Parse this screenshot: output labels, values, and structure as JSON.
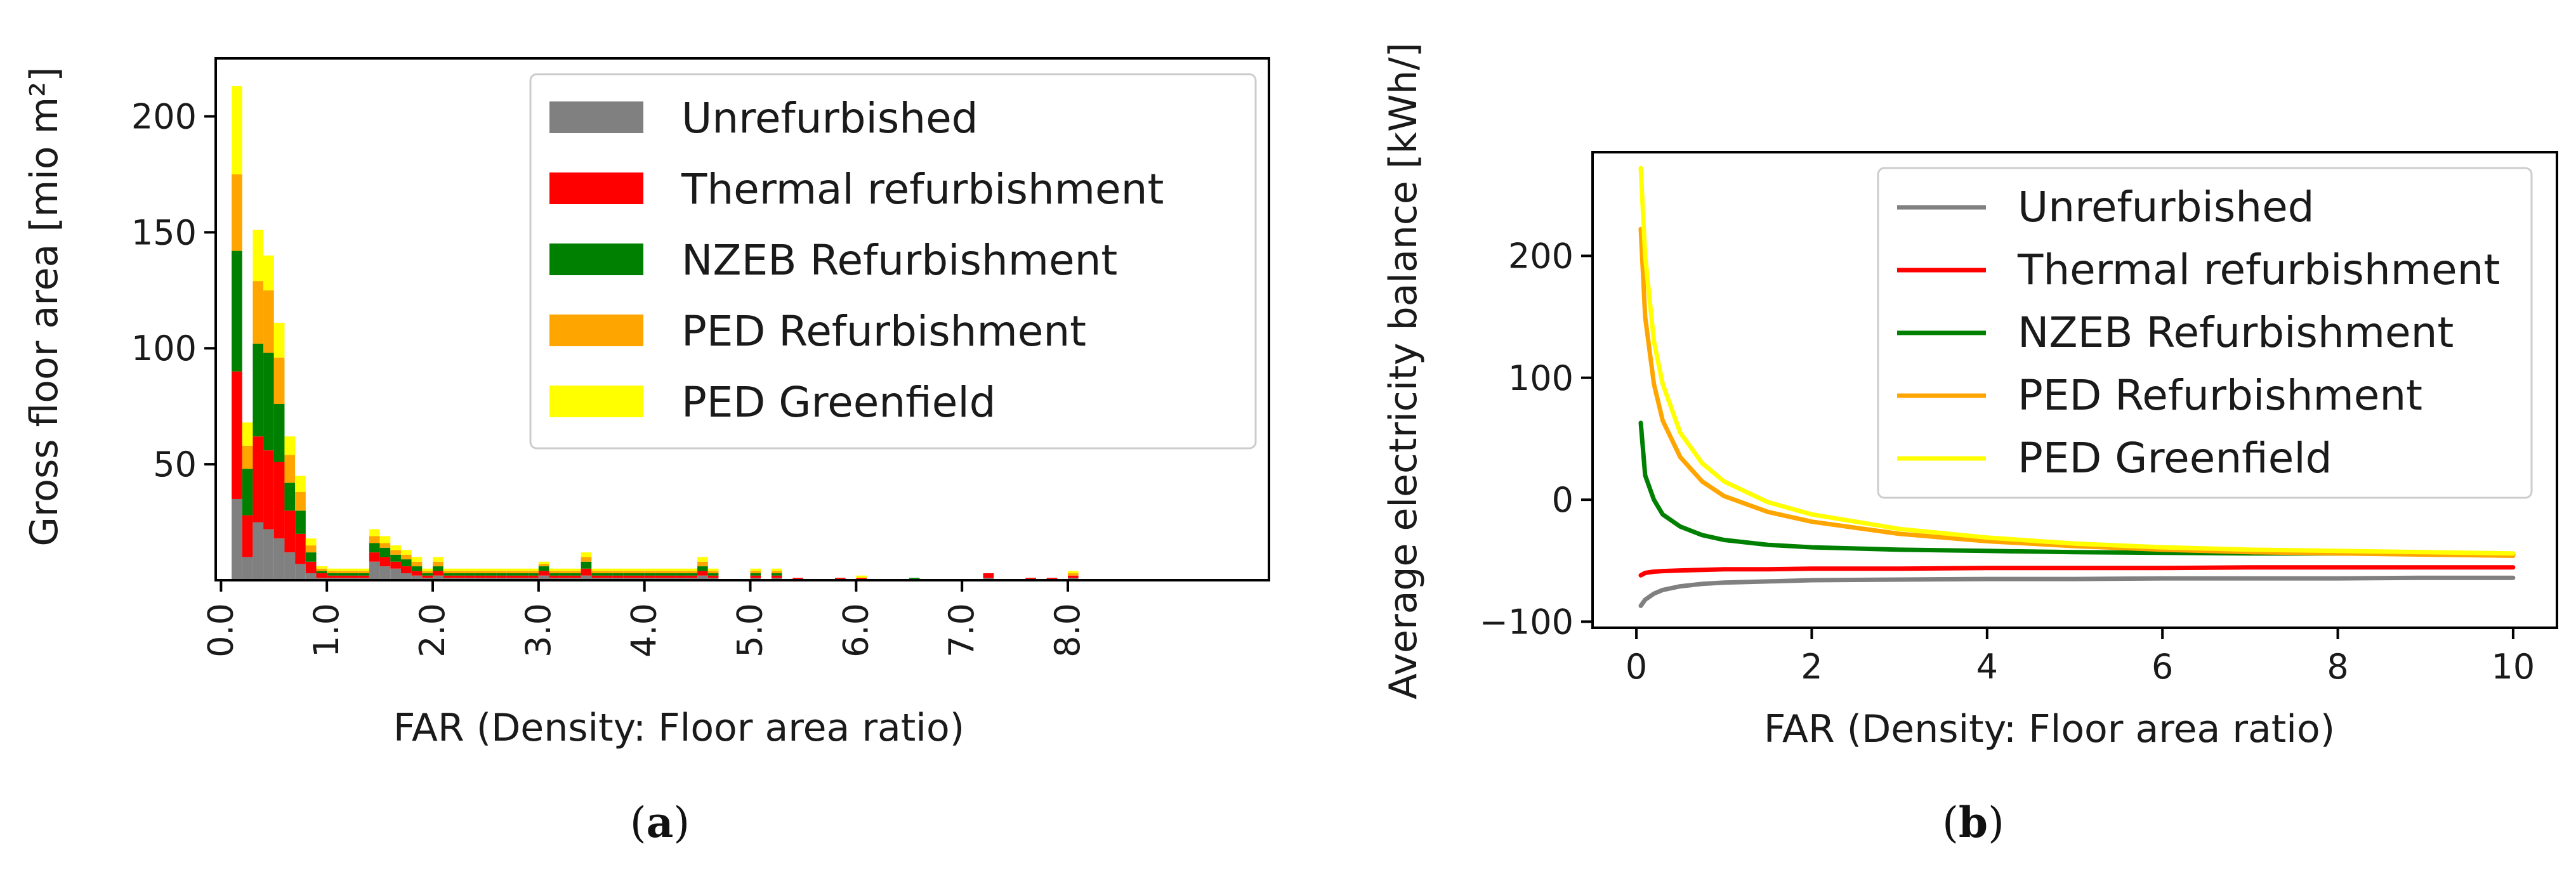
{
  "chart_data": [
    {
      "type": "bar",
      "stacked": true,
      "caption_letter": "a",
      "xlabel": "FAR (Density: Floor area ratio)",
      "ylabel": "Gross floor area [mio m²]",
      "xlim": [
        -0.05,
        9.9
      ],
      "ylim": [
        0,
        225
      ],
      "xticks": [
        "0.0",
        "1.0",
        "2.0",
        "3.0",
        "4.0",
        "5.0",
        "6.0",
        "7.0",
        "8.0"
      ],
      "yticks": [
        50,
        100,
        150,
        200
      ],
      "bin_width": 0.1,
      "bin_starts": [
        0.1,
        0.2,
        0.3,
        0.4,
        0.5,
        0.6,
        0.7,
        0.8,
        0.9,
        1.0,
        1.1,
        1.2,
        1.3,
        1.4,
        1.5,
        1.6,
        1.7,
        1.8,
        1.9,
        2.0,
        2.1,
        2.2,
        2.3,
        2.4,
        2.5,
        2.6,
        2.7,
        2.8,
        2.9,
        3.0,
        3.1,
        3.2,
        3.3,
        3.4,
        3.5,
        3.6,
        3.7,
        3.8,
        3.9,
        4.0,
        4.1,
        4.2,
        4.3,
        4.4,
        4.5,
        4.6,
        4.7,
        4.8,
        4.9,
        5.0,
        5.1,
        5.2,
        5.3,
        5.4,
        5.5,
        5.6,
        5.7,
        5.8,
        5.9,
        6.0,
        6.1,
        6.2,
        6.3,
        6.4,
        6.5,
        6.6,
        6.7,
        6.8,
        6.9,
        7.0,
        7.1,
        7.2,
        7.3,
        7.4,
        7.5,
        7.6,
        7.7,
        7.8,
        7.9,
        8.0
      ],
      "series": [
        {
          "name": "Unrefurbished",
          "color": "#808080",
          "values": [
            35,
            10,
            25,
            22,
            18,
            12,
            7,
            3,
            1,
            1,
            1,
            1,
            1,
            8,
            6,
            5,
            3,
            2,
            1,
            2,
            1,
            1,
            1,
            1,
            1,
            1,
            1,
            1,
            1,
            2,
            1,
            1,
            1,
            2,
            1,
            1,
            1,
            1,
            1,
            1,
            1,
            1,
            1,
            1,
            2,
            1,
            0,
            0,
            0,
            1,
            0,
            1,
            0,
            0,
            0,
            0,
            0,
            0,
            0,
            0,
            0,
            0,
            0,
            0,
            0,
            0,
            0,
            0,
            0,
            0,
            0,
            1,
            0,
            0,
            0,
            0,
            0,
            0,
            0,
            1
          ]
        },
        {
          "name": "Thermal refurbishment",
          "color": "#ff0000",
          "values": [
            55,
            18,
            37,
            34,
            33,
            18,
            13,
            5,
            2,
            1,
            1,
            1,
            1,
            4,
            4,
            3,
            3,
            2,
            1,
            2,
            1,
            1,
            1,
            1,
            1,
            1,
            1,
            1,
            1,
            2,
            1,
            1,
            1,
            3,
            1,
            1,
            1,
            1,
            1,
            1,
            1,
            1,
            1,
            1,
            2,
            1,
            0,
            0,
            0,
            1,
            0,
            1,
            0,
            1,
            0,
            0,
            0,
            1,
            0,
            1,
            0,
            0,
            0,
            0,
            0,
            0,
            0,
            0,
            0,
            0,
            0,
            2,
            0,
            0,
            0,
            1,
            0,
            1,
            0,
            1
          ]
        },
        {
          "name": "NZEB Refurbishment",
          "color": "#008000",
          "values": [
            52,
            20,
            40,
            42,
            25,
            12,
            10,
            4,
            1,
            1,
            1,
            1,
            1,
            4,
            4,
            3,
            3,
            2,
            1,
            2,
            1,
            1,
            1,
            1,
            1,
            1,
            1,
            1,
            1,
            2,
            1,
            1,
            1,
            3,
            1,
            1,
            1,
            1,
            1,
            1,
            1,
            1,
            1,
            1,
            2,
            1,
            0,
            0,
            0,
            1,
            0,
            1,
            0,
            0,
            0,
            0,
            0,
            0,
            0,
            0,
            0,
            0,
            0,
            0,
            1,
            0,
            0,
            0,
            0,
            0,
            0,
            0,
            0,
            0,
            0,
            0,
            0,
            0,
            0,
            0
          ]
        },
        {
          "name": "PED Refurbishment",
          "color": "#ffa500",
          "values": [
            33,
            10,
            27,
            27,
            20,
            12,
            8,
            3,
            1,
            1,
            1,
            1,
            1,
            3,
            2,
            2,
            2,
            2,
            1,
            2,
            1,
            1,
            1,
            1,
            1,
            1,
            1,
            1,
            1,
            1,
            1,
            1,
            1,
            2,
            1,
            1,
            1,
            1,
            1,
            1,
            1,
            1,
            1,
            1,
            2,
            1,
            0,
            0,
            0,
            1,
            0,
            1,
            0,
            0,
            0,
            0,
            0,
            0,
            0,
            0,
            0,
            0,
            0,
            0,
            0,
            0,
            0,
            0,
            0,
            0,
            0,
            0,
            0,
            0,
            0,
            0,
            0,
            0,
            0,
            1
          ]
        },
        {
          "name": "PED Greenfield",
          "color": "#ffff00",
          "values": [
            38,
            10,
            22,
            15,
            15,
            8,
            7,
            3,
            1,
            1,
            1,
            1,
            1,
            3,
            3,
            2,
            2,
            2,
            1,
            2,
            1,
            1,
            1,
            1,
            1,
            1,
            1,
            1,
            1,
            1,
            1,
            1,
            1,
            2,
            1,
            1,
            1,
            1,
            1,
            1,
            1,
            1,
            1,
            1,
            2,
            1,
            0,
            0,
            0,
            1,
            0,
            1,
            0,
            0,
            0,
            0,
            0,
            0,
            0,
            1,
            0,
            0,
            0,
            0,
            0,
            0,
            0,
            0,
            0,
            0,
            0,
            0,
            0,
            0,
            0,
            0,
            0,
            0,
            0,
            1
          ]
        }
      ],
      "legend_position": "top-right",
      "grid": false
    },
    {
      "type": "line",
      "caption_letter": "b",
      "xlabel": "FAR (Density: Floor area ratio)",
      "ylabel": "Average electricity balance [kWh/]",
      "xlim": [
        -0.5,
        10.5
      ],
      "ylim": [
        -105,
        285
      ],
      "xticks": [
        0,
        2,
        4,
        6,
        8,
        10
      ],
      "yticks": [
        -100,
        0,
        100,
        200
      ],
      "x": [
        0.05,
        0.1,
        0.2,
        0.3,
        0.5,
        0.75,
        1,
        1.5,
        2,
        3,
        4,
        5,
        6,
        7,
        8,
        9,
        10
      ],
      "series": [
        {
          "name": "Unrefurbished",
          "color": "#808080",
          "values": [
            -87,
            -82,
            -77,
            -74,
            -71,
            -69,
            -68,
            -67,
            -66,
            -65.5,
            -65,
            -65,
            -64.5,
            -64.5,
            -64.5,
            -64,
            -64
          ]
        },
        {
          "name": "Thermal refurbishment",
          "color": "#ff0000",
          "values": [
            -62,
            -60,
            -59,
            -58.5,
            -58,
            -57.5,
            -57,
            -57,
            -56.5,
            -56.5,
            -56,
            -56,
            -56,
            -55.5,
            -55.5,
            -55.5,
            -55.5
          ]
        },
        {
          "name": "NZEB Refurbishment",
          "color": "#008000",
          "values": [
            63,
            20,
            0,
            -12,
            -22,
            -29,
            -33,
            -37,
            -39,
            -41,
            -42,
            -43,
            -43.5,
            -44,
            -44,
            -44.5,
            -45
          ]
        },
        {
          "name": "PED Refurbishment",
          "color": "#ffa500",
          "values": [
            222,
            150,
            95,
            65,
            35,
            15,
            3,
            -10,
            -18,
            -28,
            -34,
            -38,
            -41,
            -43,
            -44,
            -45,
            -46
          ]
        },
        {
          "name": "PED Greenfield",
          "color": "#ffff00",
          "values": [
            272,
            200,
            130,
            95,
            55,
            30,
            15,
            -2,
            -12,
            -24,
            -31,
            -36,
            -39,
            -41,
            -42,
            -43,
            -44
          ]
        }
      ],
      "legend_position": "top-right",
      "grid": false
    }
  ]
}
